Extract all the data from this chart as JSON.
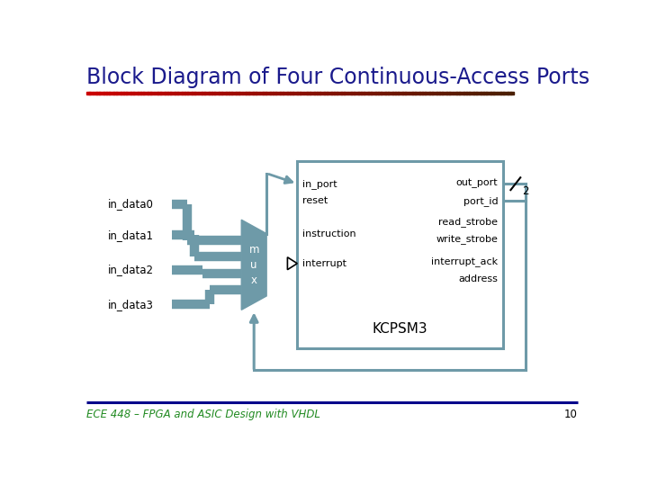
{
  "title": "Block Diagram of Four Continuous-Access Ports",
  "title_color": "#1a1a8c",
  "title_fontsize": 17,
  "footer_text": "ECE 448 – FPGA and ASIC Design with VHDL",
  "footer_number": "10",
  "footer_color": "#228B22",
  "footer_line_color": "#00008B",
  "bg_color": "#ffffff",
  "signal_color": "#6e9aa8",
  "in_labels": [
    "in_data0",
    "in_data1",
    "in_data2",
    "in_data3"
  ],
  "left_port_labels": [
    "in_port",
    "reset",
    "instruction",
    "interrupt"
  ],
  "right_port_labels": [
    "out_port",
    "port_id",
    "read_strobe",
    "write_strobe",
    "interrupt_ack",
    "address"
  ],
  "chip_label": "KCPSM3",
  "bus_width_label": "2",
  "mux_label": "m\nu\nx"
}
